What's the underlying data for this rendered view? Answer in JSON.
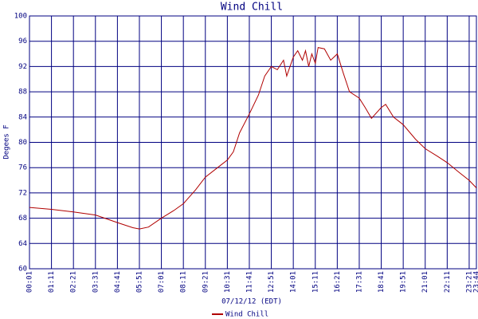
{
  "chart_data": {
    "type": "line",
    "title": "Wind Chill",
    "ylabel": "Degees F",
    "xlabel": "07/12/12 (EDT)",
    "x": [
      "00:01",
      "01:11",
      "02:21",
      "03:31",
      "04:41",
      "05:30",
      "05:51",
      "06:20",
      "07:01",
      "07:40",
      "08:11",
      "08:50",
      "09:21",
      "10:00",
      "10:31",
      "10:50",
      "11:10",
      "11:41",
      "12:10",
      "12:30",
      "12:51",
      "13:10",
      "13:30",
      "13:40",
      "14:01",
      "14:15",
      "14:30",
      "14:40",
      "14:50",
      "15:00",
      "15:11",
      "15:20",
      "15:40",
      "16:00",
      "16:21",
      "16:40",
      "17:00",
      "17:31",
      "17:50",
      "18:10",
      "18:41",
      "18:55",
      "19:20",
      "19:51",
      "20:30",
      "21:01",
      "21:40",
      "22:11",
      "22:50",
      "23:21",
      "23:44"
    ],
    "series": [
      {
        "name": "Wind Chill",
        "color": "#b00000",
        "values": [
          69.7,
          69.4,
          69.0,
          68.5,
          67.3,
          66.5,
          66.3,
          66.6,
          68.0,
          69.2,
          70.3,
          72.5,
          74.5,
          76.0,
          77.2,
          78.5,
          81.5,
          84.5,
          87.5,
          90.5,
          92.0,
          91.5,
          93.0,
          90.5,
          93.5,
          94.5,
          93.0,
          94.5,
          92.0,
          94.0,
          92.5,
          95.0,
          94.8,
          93.0,
          94.0,
          91.0,
          88.0,
          87.0,
          85.5,
          83.8,
          85.5,
          86.0,
          84.0,
          82.8,
          80.5,
          79.0,
          77.8,
          76.8,
          75.2,
          74.0,
          72.8
        ]
      }
    ],
    "xlim": [
      "00:01",
      "23:44"
    ],
    "xticks": [
      "00:01",
      "01:11",
      "02:21",
      "03:31",
      "04:41",
      "05:51",
      "07:01",
      "08:11",
      "09:21",
      "10:31",
      "11:41",
      "12:51",
      "14:01",
      "15:11",
      "16:21",
      "17:31",
      "18:41",
      "19:51",
      "21:01",
      "22:11",
      "23:21",
      "23:44"
    ],
    "ylim": [
      60,
      100
    ],
    "yticks": [
      60,
      64,
      68,
      72,
      76,
      80,
      84,
      88,
      92,
      96,
      100
    ],
    "grid": true
  }
}
